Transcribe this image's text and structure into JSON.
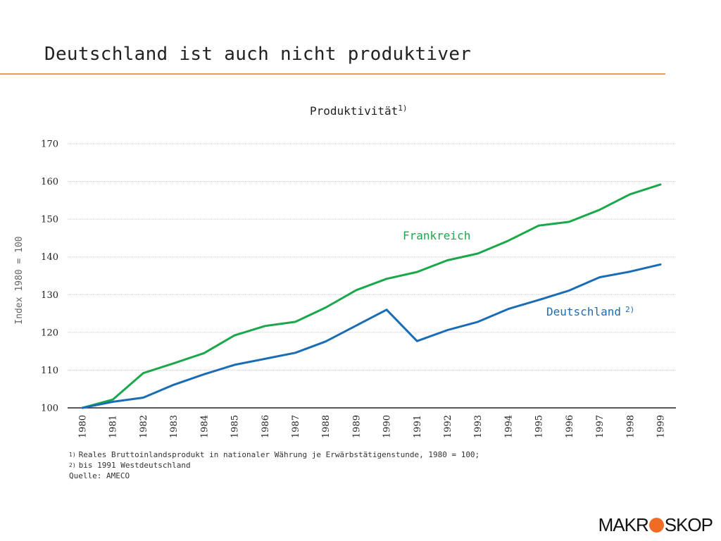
{
  "slide": {
    "title": "Deutschland ist auch nicht produktiver"
  },
  "colors": {
    "accent_rule": "#ee9a55",
    "frankreich": "#1aa84b",
    "deutschland": "#1a6db5",
    "logo_dot": "#ef6c24"
  },
  "chart_data": {
    "type": "line",
    "title": "Produktivität",
    "title_sup": "1)",
    "xlabel": "",
    "ylabel": "Index 1980 = 100",
    "ylim": [
      100,
      170
    ],
    "yticks": [
      100,
      110,
      120,
      130,
      140,
      150,
      160,
      170
    ],
    "grid": true,
    "x": [
      "1980",
      "1981",
      "1982",
      "1983",
      "1984",
      "1985",
      "1986",
      "1987",
      "1988",
      "1989",
      "1990",
      "1991",
      "1992",
      "1993",
      "1994",
      "1995",
      "1996",
      "1997",
      "1998",
      "1999"
    ],
    "series": [
      {
        "name": "Frankreich",
        "sup": "",
        "values": [
          100,
          102.2,
          109.2,
          111.8,
          114.5,
          119.2,
          121.7,
          122.8,
          126.6,
          131.2,
          134.2,
          136.0,
          139.1,
          140.9,
          144.3,
          148.3,
          149.3,
          152.5,
          156.6,
          159.2
        ]
      },
      {
        "name": "Deutschland",
        "sup": "2)",
        "values": [
          100,
          101.6,
          102.7,
          106.1,
          108.9,
          111.4,
          113.0,
          114.6,
          117.6,
          121.8,
          126.0,
          117.7,
          120.6,
          122.8,
          126.2,
          128.6,
          131.1,
          134.6,
          136.1,
          138.0
        ]
      }
    ]
  },
  "footnotes": {
    "fn1_num": "1)",
    "fn1_text": "Reales Bruttoinlandsprodukt in nationaler Währung je Erwärbstätigenstunde, 1980 = 100;",
    "fn2_num": "2)",
    "fn2_text": "bis 1991 Westdeutschland",
    "source": "Quelle: AMECO"
  },
  "logo": {
    "left": "MAKR",
    "right": "SKOP"
  }
}
